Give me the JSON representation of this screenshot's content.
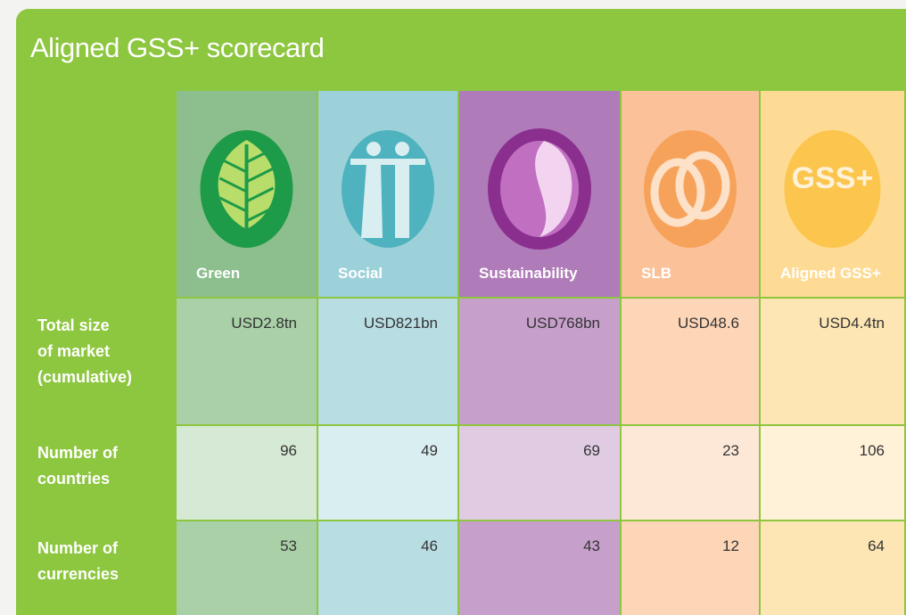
{
  "title": "Aligned GSS+ scorecard",
  "columns": [
    {
      "name": "Green"
    },
    {
      "name": "Social"
    },
    {
      "name": "Sustainability"
    },
    {
      "name": "SLB"
    },
    {
      "name": "Aligned GSS+",
      "icon_text": "GSS+"
    }
  ],
  "rows": [
    {
      "label": [
        "Total size",
        "of market",
        "(cumulative)"
      ],
      "cells": [
        "USD2.8tn",
        "USD821bn",
        "USD768bn",
        "USD48.6",
        "USD4.4tn"
      ]
    },
    {
      "label": [
        "Number of",
        "countries"
      ],
      "cells": [
        96,
        49,
        69,
        23,
        106
      ]
    },
    {
      "label": [
        "Number of",
        "currencies"
      ],
      "cells": [
        53,
        46,
        43,
        12,
        64
      ]
    }
  ]
}
